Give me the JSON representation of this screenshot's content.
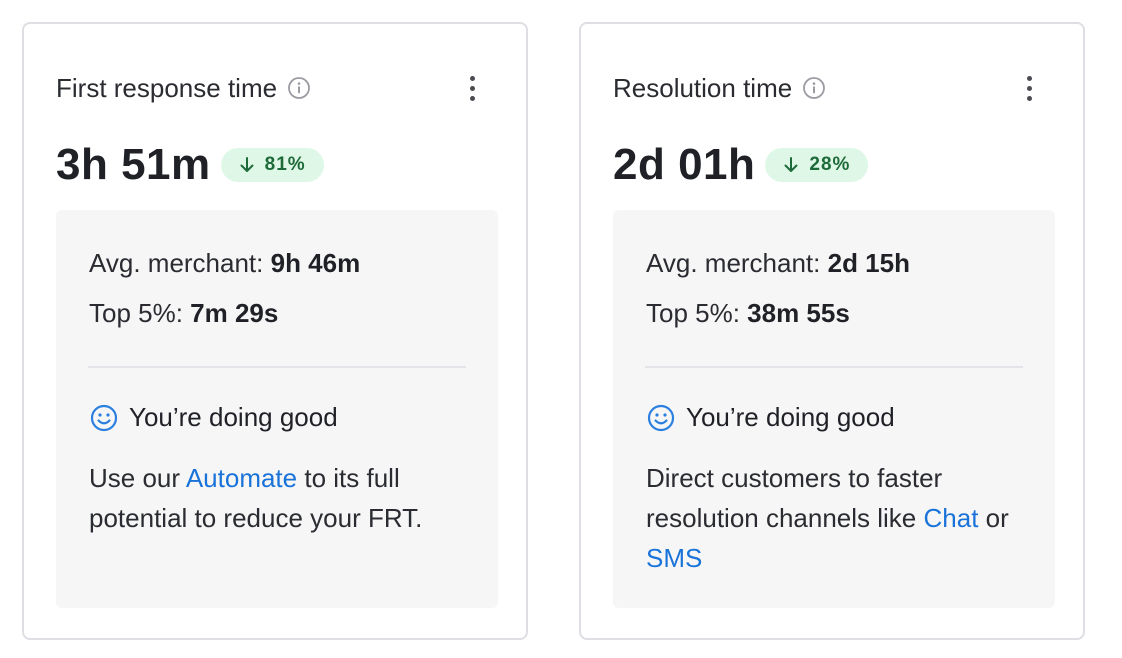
{
  "colors": {
    "badge_bg": "#dff7e6",
    "badge_text": "#1e6b3a",
    "link": "#1a73d9",
    "smile": "#2b7fe0"
  },
  "cards": [
    {
      "title": "First response time",
      "value": "3h 51m",
      "delta": "81%",
      "delta_direction": "down",
      "avg_label": "Avg. merchant: ",
      "avg_value": "9h 46m",
      "top_label": "Top 5%: ",
      "top_value": "7m 29s",
      "status": "You’re doing good",
      "advice": {
        "t1": "Use our ",
        "link1": "Automate",
        "t2": " to its full potential to reduce your FRT."
      }
    },
    {
      "title": "Resolution time",
      "value": "2d 01h",
      "delta": "28%",
      "delta_direction": "down",
      "avg_label": "Avg. merchant: ",
      "avg_value": "2d 15h",
      "top_label": "Top 5%: ",
      "top_value": "38m 55s",
      "status": "You’re doing good",
      "advice": {
        "t1": "Direct customers to faster resolution channels like ",
        "link1": "Chat",
        "t2": " or ",
        "link2": "SMS"
      }
    }
  ]
}
